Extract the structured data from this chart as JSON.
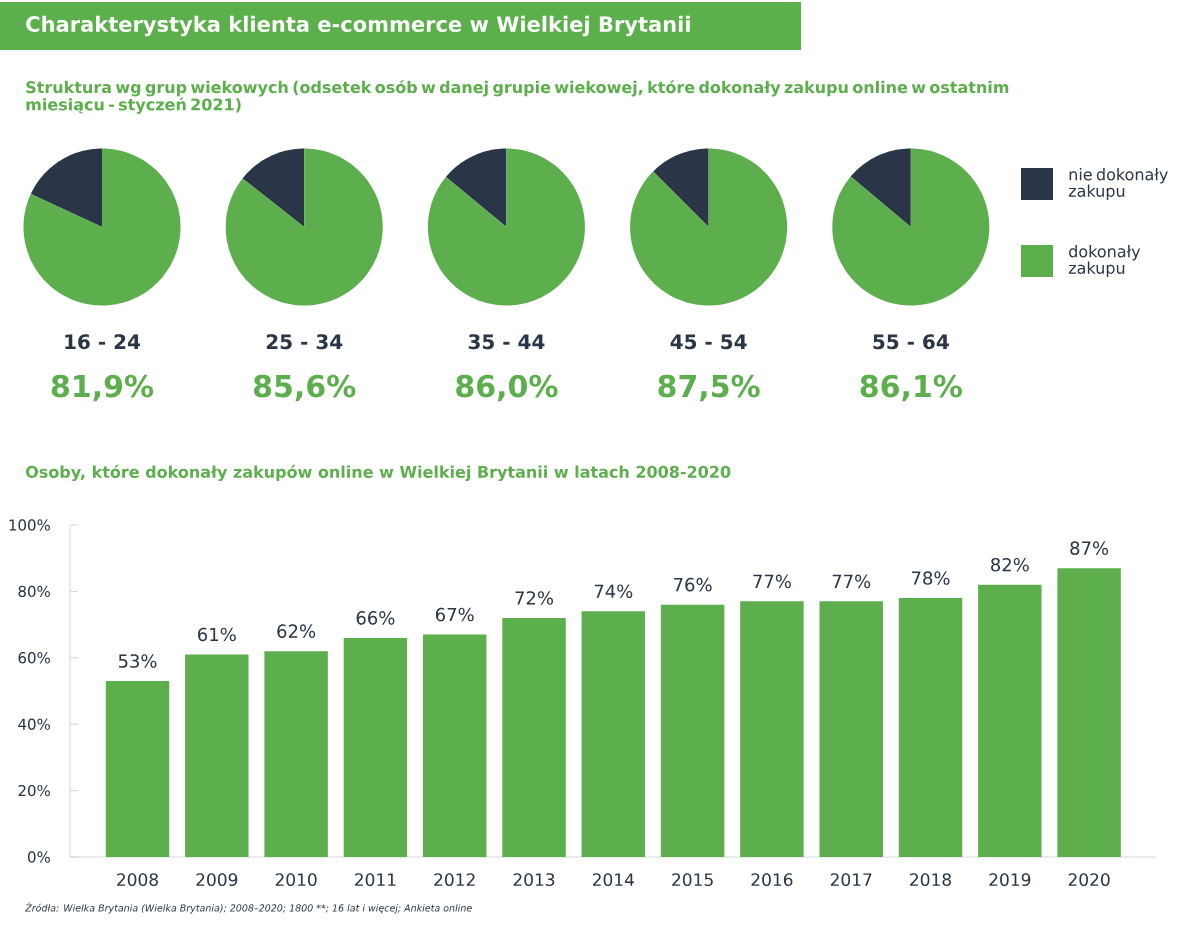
{
  "chart_data": [
    {
      "type": "pie",
      "title": "Charakterystyka klienta e-commerce w Wielkiej Brytanii",
      "subtitle": "Struktura wg grup wiekowych (odsetek osób w danej grupie wiekowej, które dokonały zakupu online w ostatnim miesiącu - styczeń 2021)",
      "categories": [
        "nie dokonały zakupu",
        "dokonały zakupu"
      ],
      "colors": [
        "#2a3648",
        "#5daf4d"
      ],
      "series": [
        {
          "name": "16 - 24",
          "values": [
            18.1,
            81.9
          ],
          "value_labels": [
            null,
            "81,9%"
          ]
        },
        {
          "name": "25 - 34",
          "values": [
            14.4,
            85.6
          ],
          "value_labels": [
            null,
            "85,6%"
          ]
        },
        {
          "name": "35 - 44",
          "values": [
            14.0,
            86.0
          ],
          "value_labels": [
            null,
            "86,0%"
          ]
        },
        {
          "name": "45 - 54",
          "values": [
            12.5,
            87.5
          ],
          "value_labels": [
            null,
            "87,5%"
          ]
        },
        {
          "name": "55 - 64",
          "values": [
            13.9,
            86.1
          ],
          "value_labels": [
            null,
            "86,1%"
          ]
        }
      ],
      "legend": "right"
    },
    {
      "type": "bar",
      "title": "Osoby, które dokonały zakupów online w Wielkiej Brytanii w latach 2008-2020",
      "categories": [
        "2008",
        "2009",
        "2010",
        "2011",
        "2012",
        "2013",
        "2014",
        "2015",
        "2016",
        "2017",
        "2018",
        "2019",
        "2020"
      ],
      "values": [
        53,
        61,
        62,
        66,
        67,
        72,
        74,
        76,
        77,
        77,
        78,
        82,
        87
      ],
      "value_labels": [
        "53%",
        "61%",
        "62%",
        "66%",
        "67%",
        "72%",
        "74%",
        "76%",
        "77%",
        "77%",
        "78%",
        "82%",
        "87%"
      ],
      "color": "#5daf4d",
      "ylim": [
        0,
        100
      ],
      "yticks": [
        {
          "value": 0,
          "label": "0%"
        },
        {
          "value": 20,
          "label": "20%"
        },
        {
          "value": 40,
          "label": "40%"
        },
        {
          "value": 60,
          "label": "60%"
        },
        {
          "value": 80,
          "label": "80%"
        },
        {
          "value": 100,
          "label": "100%"
        }
      ],
      "annotations": [
        "Źródła: Wielka Brytania (Wielka Brytania); 2008–2020; 1800 **; 16 lat i więcej; Ankieta online"
      ]
    }
  ]
}
